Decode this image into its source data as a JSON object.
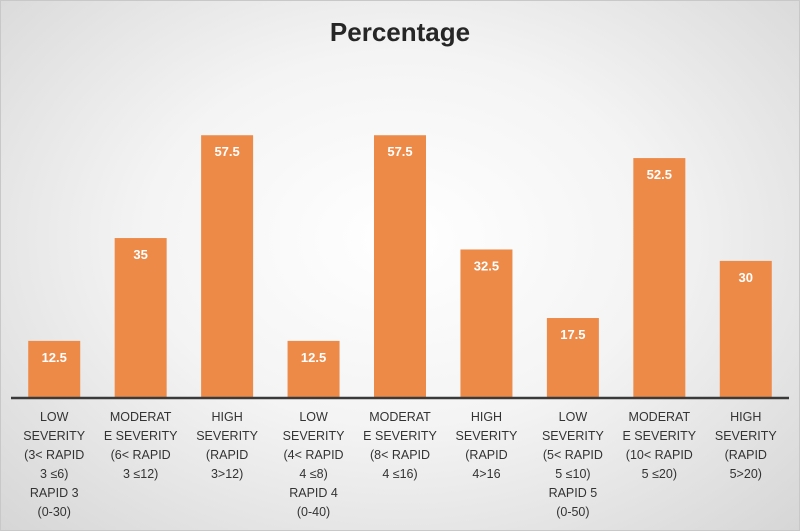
{
  "chart_data": {
    "type": "bar",
    "title": "Percentage",
    "xlabel": "",
    "ylabel": "",
    "ylim": [
      0,
      70
    ],
    "grid": false,
    "legend": "none",
    "bar_color": "#ED8A48",
    "label_color": "#FFFFFF",
    "categories": [
      [
        "LOW",
        "SEVERITY",
        "(3< RAPID",
        "3 ≤6)",
        "RAPID 3",
        "(0-30)"
      ],
      [
        "MODERAT",
        "E SEVERITY",
        "(6< RAPID",
        "3 ≤12)"
      ],
      [
        "HIGH",
        "SEVERITY",
        "(RAPID",
        "3>12)"
      ],
      [
        "LOW",
        "SEVERITY",
        "(4< RAPID",
        "4 ≤8)",
        "RAPID 4",
        "(0-40)"
      ],
      [
        "MODERAT",
        "E SEVERITY",
        "(8< RAPID",
        "4 ≤16)"
      ],
      [
        "HIGH",
        "SEVERITY",
        "(RAPID",
        "4>16"
      ],
      [
        "LOW",
        "SEVERITY",
        "(5< RAPID",
        "5 ≤10)",
        "RAPID 5",
        "(0-50)"
      ],
      [
        "MODERAT",
        "E SEVERITY",
        "(10< RAPID",
        "5 ≤20)"
      ],
      [
        "HIGH",
        "SEVERITY",
        "(RAPID",
        "5>20)"
      ]
    ],
    "values": [
      12.5,
      35,
      57.5,
      12.5,
      57.5,
      32.5,
      17.5,
      52.5,
      30
    ],
    "value_labels": [
      "12.5",
      "35",
      "57.5",
      "12.5",
      "57.5",
      "32.5",
      "17.5",
      "52.5",
      "30"
    ]
  }
}
